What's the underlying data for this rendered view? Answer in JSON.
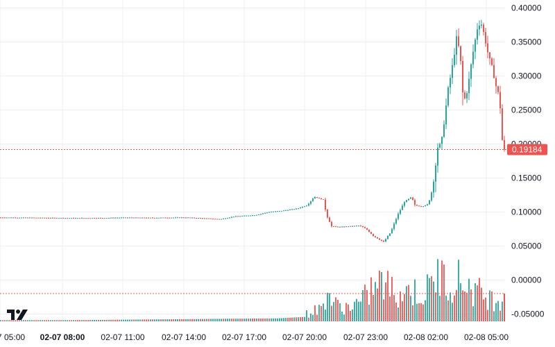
{
  "colors": {
    "up": "#26a69a",
    "down": "#ef5350",
    "grid": "#eceff3",
    "price_line": "#ef5350",
    "text": "#131722",
    "badge_text": "#ffffff"
  },
  "logo_icon": "tradingview-logo-icon",
  "chart_data": {
    "type": "candlestick",
    "y_ticks": [
      "0.40000",
      "0.35000",
      "0.30000",
      "0.25000",
      "0.20000",
      "0.15000",
      "0.10000",
      "0.05000",
      "0.00000",
      "-0.05000"
    ],
    "x_ticks": [
      {
        "label": "7 05:00",
        "bold": false
      },
      {
        "label": "02-07 08:00",
        "bold": true
      },
      {
        "label": "02-07 11:00",
        "bold": false
      },
      {
        "label": "02-07 14:00",
        "bold": false
      },
      {
        "label": "02-07 17:00",
        "bold": false
      },
      {
        "label": "02-07 20:00",
        "bold": false
      },
      {
        "label": "02-07 23:00",
        "bold": false
      },
      {
        "label": "02-08 02:00",
        "bold": false
      },
      {
        "label": "02-08 05:00",
        "bold": false
      }
    ],
    "ylim": [
      -0.06,
      0.41
    ],
    "last_price": 0.19184,
    "last_price_label": "0.19184",
    "price_path": [
      [
        0,
        0.092
      ],
      [
        60,
        0.0915
      ],
      [
        100,
        0.091
      ],
      [
        150,
        0.0912
      ],
      [
        180,
        0.0918
      ],
      [
        220,
        0.0915
      ],
      [
        270,
        0.092
      ],
      [
        300,
        0.0905
      ],
      [
        320,
        0.0895
      ],
      [
        340,
        0.0935
      ],
      [
        370,
        0.0955
      ],
      [
        390,
        0.1
      ],
      [
        410,
        0.102
      ],
      [
        430,
        0.105
      ],
      [
        445,
        0.11
      ],
      [
        455,
        0.1225
      ],
      [
        468,
        0.118
      ],
      [
        473,
        0.095
      ],
      [
        480,
        0.079
      ],
      [
        490,
        0.078
      ],
      [
        505,
        0.079
      ],
      [
        520,
        0.08
      ],
      [
        530,
        0.075
      ],
      [
        540,
        0.065
      ],
      [
        548,
        0.06
      ],
      [
        555,
        0.056
      ],
      [
        565,
        0.07
      ],
      [
        575,
        0.095
      ],
      [
        585,
        0.115
      ],
      [
        595,
        0.122
      ],
      [
        600,
        0.11
      ],
      [
        610,
        0.108
      ],
      [
        620,
        0.112
      ],
      [
        628,
        0.15
      ],
      [
        632,
        0.195
      ],
      [
        638,
        0.2
      ],
      [
        643,
        0.24
      ],
      [
        648,
        0.28
      ],
      [
        655,
        0.32
      ],
      [
        660,
        0.355
      ],
      [
        665,
        0.335
      ],
      [
        670,
        0.26
      ],
      [
        676,
        0.28
      ],
      [
        683,
        0.33
      ],
      [
        690,
        0.37
      ],
      [
        695,
        0.38
      ],
      [
        700,
        0.36
      ],
      [
        706,
        0.33
      ],
      [
        712,
        0.31
      ],
      [
        718,
        0.28
      ],
      [
        722,
        0.27
      ],
      [
        727,
        0.19
      ]
    ],
    "volume_spikes": [
      [
        0,
        0.04
      ],
      [
        100,
        0.04
      ],
      [
        200,
        0.06
      ],
      [
        300,
        0.08
      ],
      [
        400,
        0.1
      ],
      [
        440,
        0.15
      ],
      [
        465,
        0.3
      ],
      [
        470,
        0.7
      ],
      [
        480,
        0.35
      ],
      [
        500,
        0.3
      ],
      [
        520,
        0.4
      ],
      [
        535,
        0.7
      ],
      [
        550,
        0.8
      ],
      [
        570,
        0.6
      ],
      [
        590,
        0.65
      ],
      [
        610,
        0.55
      ],
      [
        620,
        0.75
      ],
      [
        630,
        1.0
      ],
      [
        640,
        0.85
      ],
      [
        655,
        0.9
      ],
      [
        670,
        0.8
      ],
      [
        690,
        0.6
      ],
      [
        710,
        0.45
      ],
      [
        727,
        0.55
      ]
    ]
  }
}
